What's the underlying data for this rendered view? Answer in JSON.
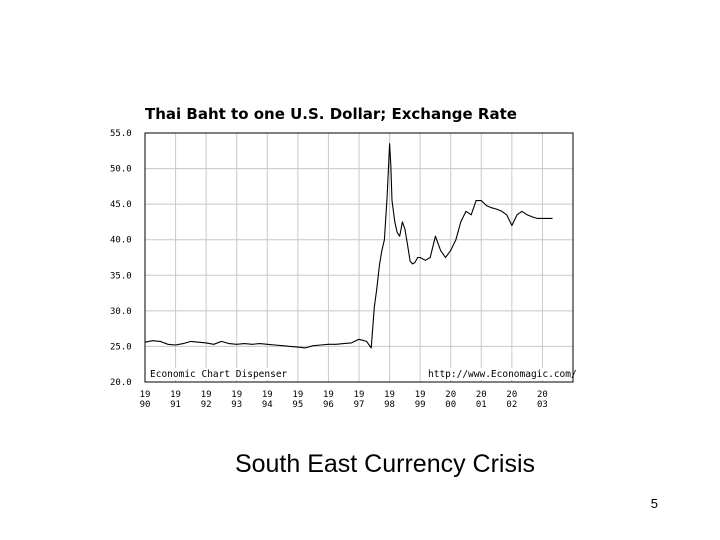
{
  "slide": {
    "caption": "South East Currency Crisis",
    "page_number": "5"
  },
  "chart_data": {
    "type": "line",
    "title": "Thai Baht to one U.S. Dollar; Exchange Rate",
    "xlabel": "",
    "ylabel": "",
    "ylim": [
      20,
      55
    ],
    "xlim": [
      1990,
      2004
    ],
    "grid": true,
    "y_ticks": [
      "55.0",
      "50.0",
      "45.0",
      "40.0",
      "35.0",
      "30.0",
      "25.0",
      "20.0"
    ],
    "y_tick_values": [
      55,
      50,
      45,
      40,
      35,
      30,
      25,
      20
    ],
    "x_ticks": [
      {
        "year": 1990,
        "line1": "19",
        "line2": "90"
      },
      {
        "year": 1991,
        "line1": "19",
        "line2": "91"
      },
      {
        "year": 1992,
        "line1": "19",
        "line2": "92"
      },
      {
        "year": 1993,
        "line1": "19",
        "line2": "93"
      },
      {
        "year": 1994,
        "line1": "19",
        "line2": "94"
      },
      {
        "year": 1995,
        "line1": "19",
        "line2": "95"
      },
      {
        "year": 1996,
        "line1": "19",
        "line2": "96"
      },
      {
        "year": 1997,
        "line1": "19",
        "line2": "97"
      },
      {
        "year": 1998,
        "line1": "19",
        "line2": "98"
      },
      {
        "year": 1999,
        "line1": "19",
        "line2": "99"
      },
      {
        "year": 2000,
        "line1": "20",
        "line2": "00"
      },
      {
        "year": 2001,
        "line1": "20",
        "line2": "01"
      },
      {
        "year": 2002,
        "line1": "20",
        "line2": "02"
      },
      {
        "year": 2003,
        "line1": "20",
        "line2": "03"
      }
    ],
    "annotations": {
      "left": "Economic Chart Dispenser",
      "right": "http://www.Economagic.com/"
    },
    "series": [
      {
        "x": [
          1990.0,
          1990.25,
          1990.5,
          1990.75,
          1991.0,
          1991.25,
          1991.5,
          1991.75,
          1992.0,
          1992.25,
          1992.5,
          1992.75,
          1993.0,
          1993.25,
          1993.5,
          1993.75,
          1994.0,
          1994.25,
          1994.5,
          1994.75,
          1995.0,
          1995.25,
          1995.5,
          1995.75,
          1996.0,
          1996.25,
          1996.5,
          1996.75,
          1997.0,
          1997.25,
          1997.4,
          1997.5,
          1997.58,
          1997.67,
          1997.75,
          1997.83,
          1997.92,
          1998.0,
          1998.04,
          1998.08,
          1998.17,
          1998.25,
          1998.33,
          1998.42,
          1998.5,
          1998.58,
          1998.67,
          1998.75,
          1998.83,
          1998.92,
          1999.0,
          1999.17,
          1999.33,
          1999.5,
          1999.67,
          1999.83,
          2000.0,
          2000.17,
          2000.33,
          2000.5,
          2000.67,
          2000.83,
          2001.0,
          2001.17,
          2001.33,
          2001.5,
          2001.67,
          2001.83,
          2002.0,
          2002.17,
          2002.33,
          2002.5,
          2002.67,
          2002.83,
          2003.0,
          2003.17,
          2003.33
        ],
        "values": [
          25.6,
          25.8,
          25.7,
          25.3,
          25.2,
          25.4,
          25.7,
          25.6,
          25.5,
          25.3,
          25.7,
          25.4,
          25.3,
          25.4,
          25.3,
          25.4,
          25.3,
          25.2,
          25.1,
          25.0,
          24.9,
          24.8,
          25.1,
          25.2,
          25.3,
          25.3,
          25.4,
          25.5,
          26.0,
          25.7,
          24.8,
          30.5,
          33.0,
          36.5,
          38.5,
          40.0,
          46.0,
          53.5,
          50.5,
          45.5,
          42.5,
          41.0,
          40.5,
          42.5,
          41.5,
          39.5,
          37.0,
          36.6,
          36.8,
          37.5,
          37.5,
          37.1,
          37.5,
          40.5,
          38.5,
          37.5,
          38.5,
          40.0,
          42.5,
          44.0,
          43.5,
          45.5,
          45.5,
          44.8,
          44.5,
          44.3,
          44.0,
          43.5,
          42.0,
          43.5,
          44.0,
          43.5,
          43.2,
          43.0,
          43.0,
          43.0,
          43.0
        ]
      }
    ]
  }
}
